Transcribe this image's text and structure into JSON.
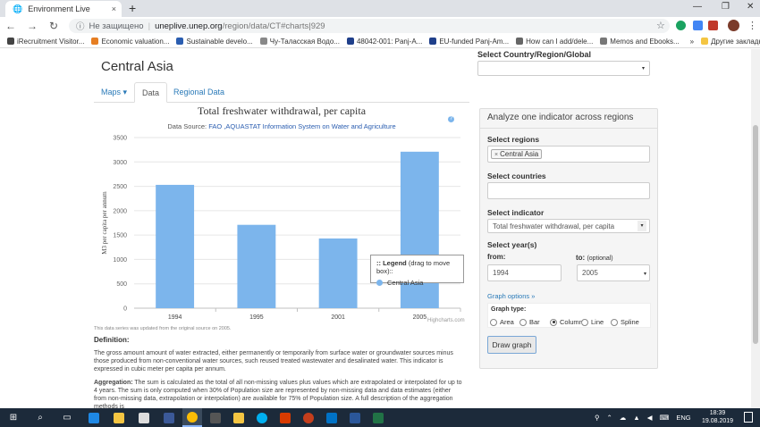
{
  "browser": {
    "tab_title": "Environment Live",
    "tab_close": "×",
    "new_tab": "+",
    "window_controls": {
      "minimize": "—",
      "maximize": "❐",
      "close": "✕"
    },
    "security_label": "Не защищено",
    "url_separator": "|",
    "url_host": "uneplive.unep.org",
    "url_path": "/region/data/CT#charts|929",
    "bookmarks": [
      {
        "label": "iRecruitment Visitor...",
        "color": "#444444"
      },
      {
        "label": "Economic valuation...",
        "color": "#e67e22"
      },
      {
        "label": "Sustainable develo...",
        "color": "#2a5db0"
      },
      {
        "label": "Чу-Таласская Водо...",
        "color": "#888888"
      },
      {
        "label": "48042-001: Panj-A...",
        "color": "#1f3f8a"
      },
      {
        "label": "EU-funded Panj-Am...",
        "color": "#1f3f8a"
      },
      {
        "label": "How can I add/dele...",
        "color": "#666666"
      },
      {
        "label": "Memos and Ebooks...",
        "color": "#777777"
      }
    ],
    "bookmarks_more": "»",
    "other_bookmarks": "Другие закладки"
  },
  "page": {
    "title": "Central Asia",
    "tabs": [
      {
        "label": "Maps ▾"
      },
      {
        "label": "Data"
      },
      {
        "label": "Regional Data"
      }
    ]
  },
  "chart_data": {
    "type": "bar",
    "title": "Total freshwater withdrawal, per capita",
    "source_prefix": "Data Source:",
    "source_link": "FAO ,AQUASTAT Information System on Water and Agriculture",
    "xlabel": "",
    "ylabel": "M3 per capita per annum",
    "categories": [
      "1994",
      "1995",
      "2001",
      "2005"
    ],
    "series": [
      {
        "name": "Central Asia",
        "values": [
          2530,
          1710,
          1430,
          3210
        ],
        "color": "#7cb5ec"
      }
    ],
    "ylim": [
      0,
      3500
    ],
    "yticks": [
      0,
      500,
      1000,
      1500,
      2000,
      2500,
      3000,
      3500
    ],
    "grid": true,
    "legend_title": ":: Legend",
    "legend_hint": "(drag to move box)::",
    "credit": "Highcharts.com",
    "info_icon": "?",
    "updated_note": "This data series was updated from the original source on 2005."
  },
  "definition": {
    "heading": "Definition:",
    "text": "The gross amount amount of water extracted, either permanently or temporarily from surface water or groundwater sources minus those produced from non-conventional water sources, such reused treated wastewater and desalinated water. This indicator is expressed in cubic meter per capita per annum.",
    "aggregation_heading": "Aggregation:",
    "aggregation_text": "The sum is calculated as the total of all non-missing values plus values which are extrapolated or interpolated for up to 4 years. The sum is only computed when 30% of Population size are represented by non-missing data and data estimates (either from non-missing data, extrapolation or interpolation) are available for 75% of Population size. A full description of the aggregation methods is"
  },
  "panel": {
    "select_country_label": "Select Country/Region/Global",
    "select_country_value": "",
    "title": "Analyze one indicator across regions",
    "regions_label": "Select regions",
    "region_chip": "Central Asia",
    "chip_remove": "×",
    "countries_label": "Select countries",
    "countries_value": "",
    "indicator_label": "Select indicator",
    "indicator_value": "Total freshwater withdrawal, per capita",
    "years_label": "Select year(s)",
    "from_label": "from:",
    "to_label": "to:",
    "to_optional": "(optional)",
    "from_value": "1994",
    "to_value": "2005",
    "graph_options": "Graph options »",
    "graph_type_label": "Graph type:",
    "graph_types": [
      {
        "label": "Area",
        "selected": false
      },
      {
        "label": "Bar",
        "selected": false
      },
      {
        "label": "Column",
        "selected": true
      },
      {
        "label": "Line",
        "selected": false
      },
      {
        "label": "Spline",
        "selected": false
      }
    ],
    "draw_button": "Draw graph",
    "caret": "▾"
  },
  "taskbar": {
    "start": "⊞",
    "search": "⌕",
    "tray_lang": "ENG",
    "time": "18:39",
    "date": "19.08.2019"
  }
}
